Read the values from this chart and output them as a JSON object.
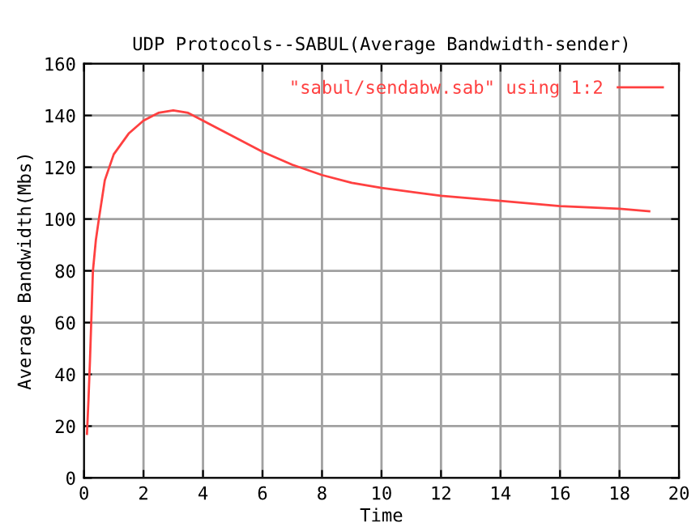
{
  "chart_data": {
    "type": "line",
    "title": "UDP Protocols--SABUL(Average Bandwidth-sender)",
    "xlabel": "Time",
    "ylabel": "Average Bandwidth(Mbs)",
    "series": [
      {
        "name": "\"sabul/sendabw.sab\" using 1:2",
        "color": "#ff4040",
        "x": [
          0.1,
          0.15,
          0.2,
          0.3,
          0.4,
          0.5,
          0.7,
          1,
          1.5,
          2,
          2.5,
          3,
          3.5,
          4,
          5,
          6,
          7,
          8,
          9,
          10,
          12,
          14,
          16,
          18,
          19
        ],
        "values": [
          17,
          30,
          45,
          80,
          92,
          100,
          115,
          125,
          133,
          138,
          141,
          142,
          141,
          138,
          132,
          126,
          121,
          117,
          114,
          112,
          109,
          107,
          105,
          104,
          103
        ]
      }
    ],
    "xlim": [
      0,
      20
    ],
    "xticks": [
      0,
      2,
      4,
      6,
      8,
      10,
      12,
      14,
      16,
      18,
      20
    ],
    "ylim": [
      0,
      160
    ],
    "yticks": [
      0,
      20,
      40,
      60,
      80,
      100,
      120,
      140,
      160
    ],
    "grid": true,
    "legend": "top right"
  }
}
